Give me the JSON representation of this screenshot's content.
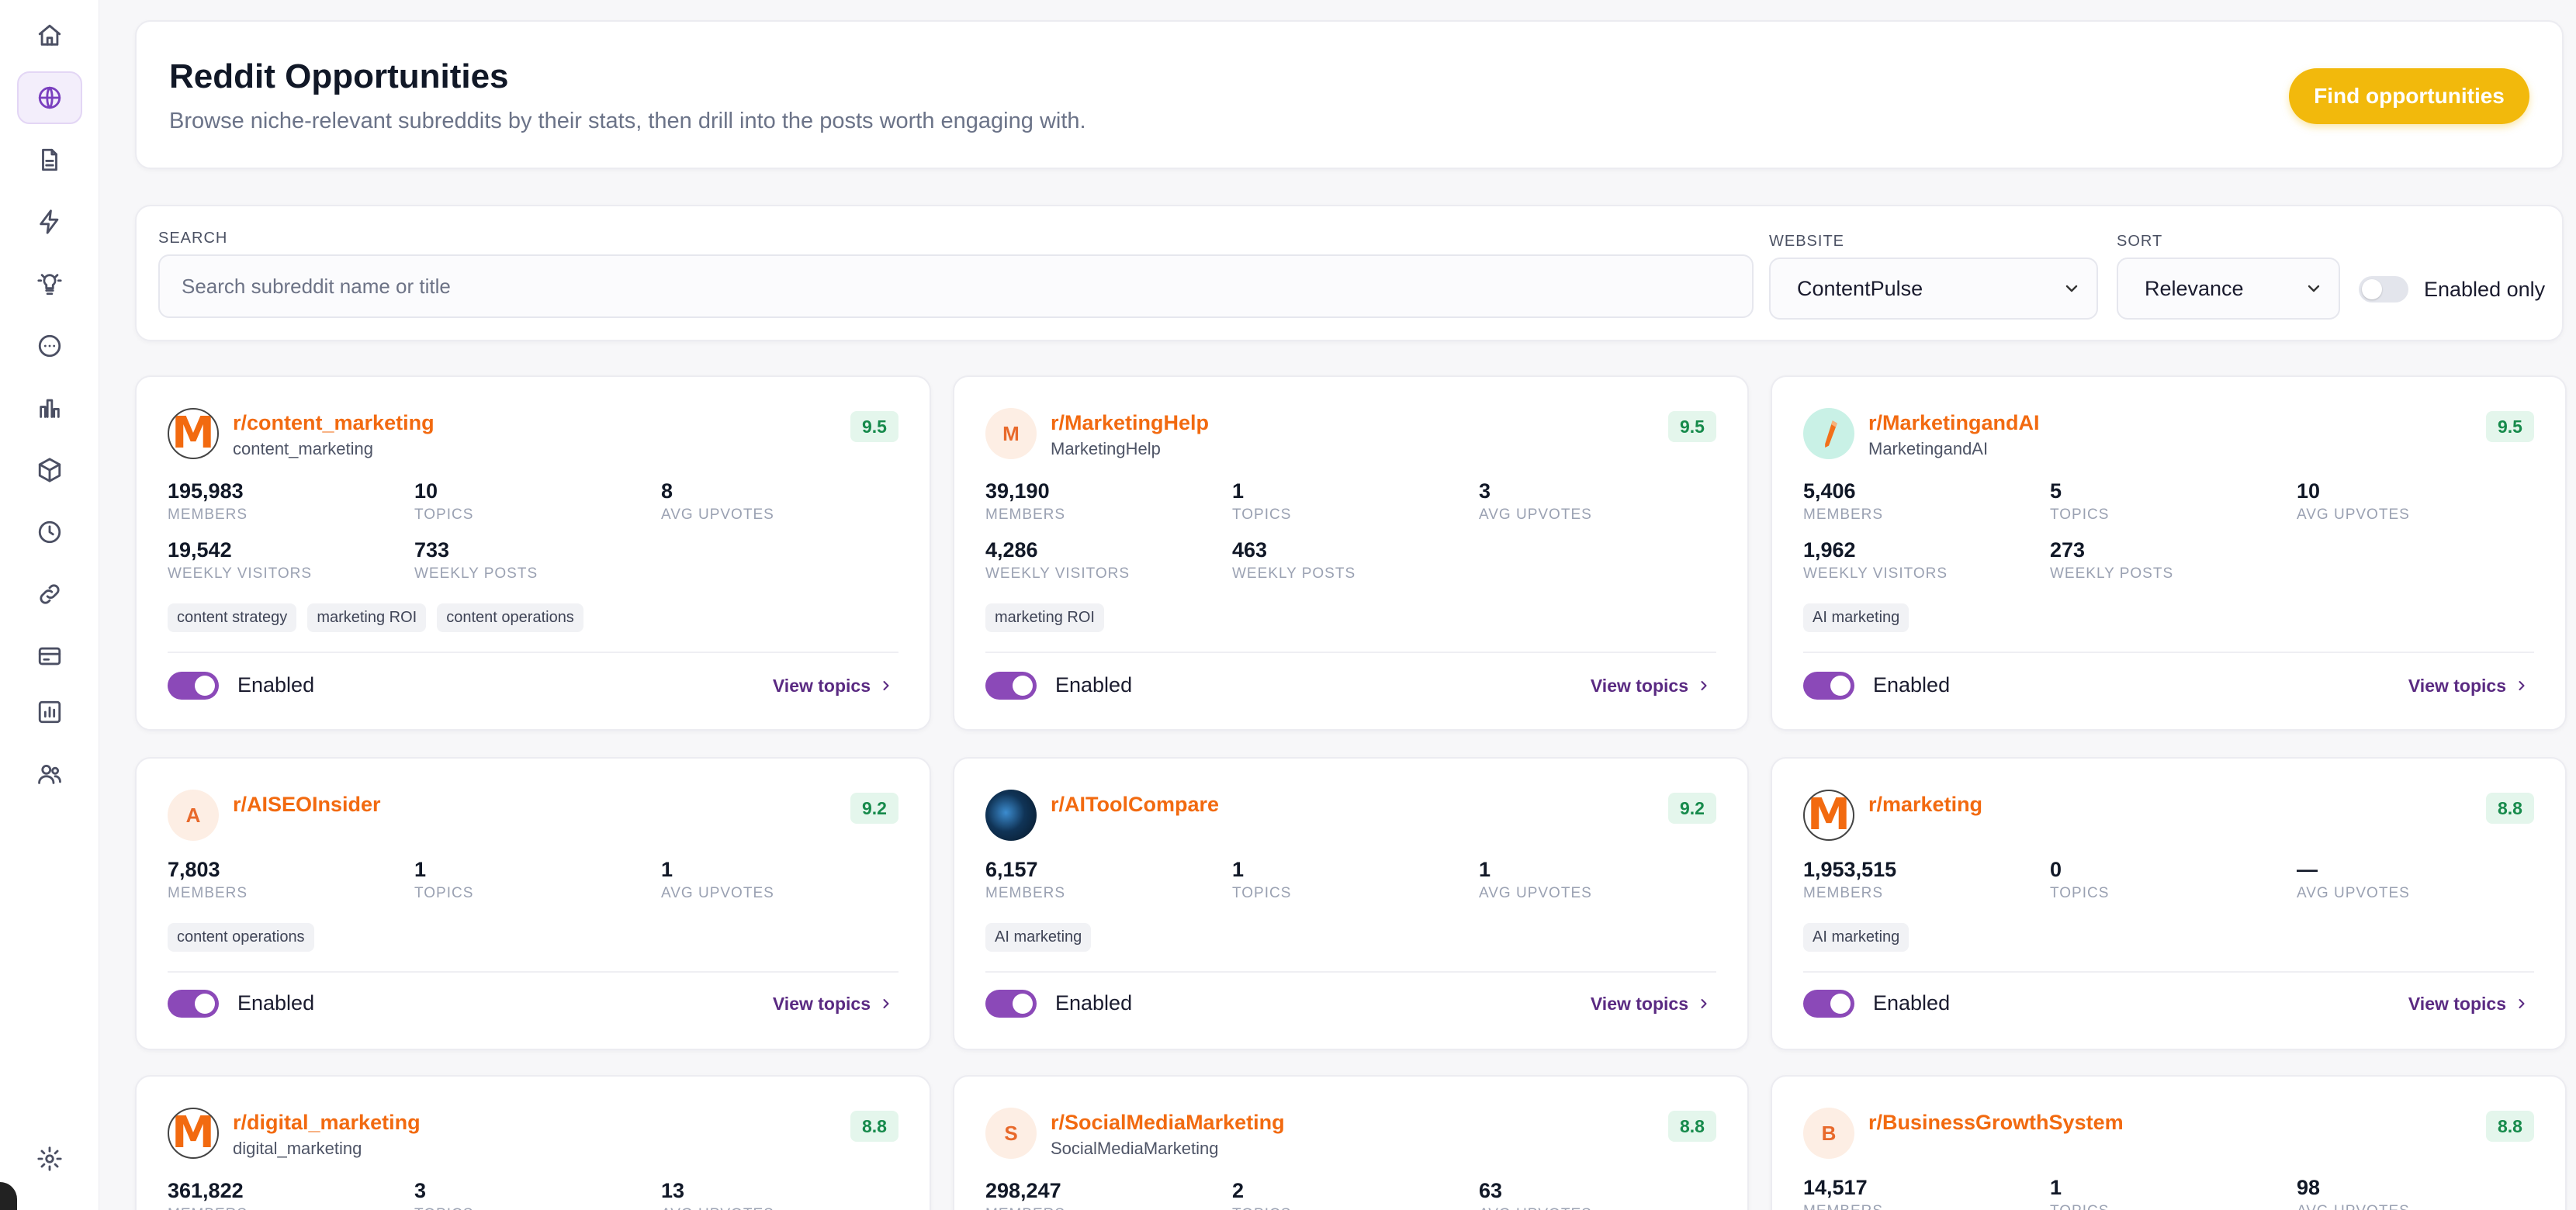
{
  "sidebar": {
    "items": [
      {
        "name": "home-icon",
        "active": false
      },
      {
        "name": "globe-icon",
        "active": true
      },
      {
        "name": "document-icon",
        "active": false
      },
      {
        "name": "lightning-icon",
        "active": false
      },
      {
        "name": "lightbulb-icon",
        "active": false
      },
      {
        "name": "circle-dots-icon",
        "active": false
      },
      {
        "name": "bar-chart-icon",
        "active": false
      },
      {
        "name": "cube-icon",
        "active": false
      },
      {
        "name": "clock-icon",
        "active": false
      },
      {
        "name": "link-icon",
        "active": false
      },
      {
        "name": "credit-card-icon",
        "active": false
      },
      {
        "name": "analytics-icon",
        "active": false
      },
      {
        "name": "users-icon",
        "active": false
      }
    ],
    "footer_icon": "gear-icon"
  },
  "header": {
    "title": "Reddit Opportunities",
    "subtitle": "Browse niche-relevant subreddits by their stats, then drill into the posts worth engaging with.",
    "find_button": "Find opportunities",
    "accent_color": "#f2b90c"
  },
  "filters": {
    "search_label": "SEARCH",
    "search_placeholder": "Search subreddit name or title",
    "website_label": "WEBSITE",
    "website_value": "ContentPulse",
    "sort_label": "SORT",
    "sort_value": "Relevance",
    "enabled_only_label": "Enabled only",
    "enabled_only": false
  },
  "labels": {
    "members": "MEMBERS",
    "topics": "TOPICS",
    "avg_upvotes": "AVG UPVOTES",
    "weekly_visitors": "WEEKLY VISITORS",
    "weekly_posts": "WEEKLY POSTS",
    "enabled": "Enabled",
    "view_topics": "View topics"
  },
  "subreddits": [
    {
      "name": "r/content_marketing",
      "handle": "content_marketing",
      "score": "9.5",
      "avatar": "m",
      "members": "195,983",
      "topics": "10",
      "avg_upvotes": "8",
      "weekly_visitors": "19,542",
      "weekly_posts": "733",
      "tags": [
        "content strategy",
        "marketing ROI",
        "content operations"
      ],
      "enabled": true
    },
    {
      "name": "r/MarketingHelp",
      "handle": "MarketingHelp",
      "score": "9.5",
      "avatar": "letter",
      "letter": "M",
      "members": "39,190",
      "topics": "1",
      "avg_upvotes": "3",
      "weekly_visitors": "4,286",
      "weekly_posts": "463",
      "tags": [
        "marketing ROI"
      ],
      "enabled": true
    },
    {
      "name": "r/MarketingandAI",
      "handle": "MarketingandAI",
      "score": "9.5",
      "avatar": "ai",
      "members": "5,406",
      "topics": "5",
      "avg_upvotes": "10",
      "weekly_visitors": "1,962",
      "weekly_posts": "273",
      "tags": [
        "AI marketing"
      ],
      "enabled": true
    },
    {
      "name": "r/AISEOInsider",
      "handle": "",
      "score": "9.2",
      "avatar": "letter",
      "letter": "A",
      "members": "7,803",
      "topics": "1",
      "avg_upvotes": "1",
      "tags": [
        "content operations"
      ],
      "enabled": true
    },
    {
      "name": "r/AIToolCompare",
      "handle": "",
      "score": "9.2",
      "avatar": "tool",
      "members": "6,157",
      "topics": "1",
      "avg_upvotes": "1",
      "tags": [
        "AI marketing"
      ],
      "enabled": true
    },
    {
      "name": "r/marketing",
      "handle": "",
      "score": "8.8",
      "avatar": "m",
      "members": "1,953,515",
      "topics": "0",
      "avg_upvotes": "—",
      "tags": [
        "AI marketing"
      ],
      "enabled": true
    },
    {
      "name": "r/digital_marketing",
      "handle": "digital_marketing",
      "score": "8.8",
      "avatar": "m",
      "members": "361,822",
      "topics": "3",
      "avg_upvotes": "13"
    },
    {
      "name": "r/SocialMediaMarketing",
      "handle": "SocialMediaMarketing",
      "score": "8.8",
      "avatar": "letter",
      "letter": "S",
      "members": "298,247",
      "topics": "2",
      "avg_upvotes": "63"
    },
    {
      "name": "r/BusinessGrowthSystem",
      "handle": "",
      "score": "8.8",
      "avatar": "letter",
      "letter": "B",
      "members": "14,517",
      "topics": "1",
      "avg_upvotes": "98"
    }
  ]
}
